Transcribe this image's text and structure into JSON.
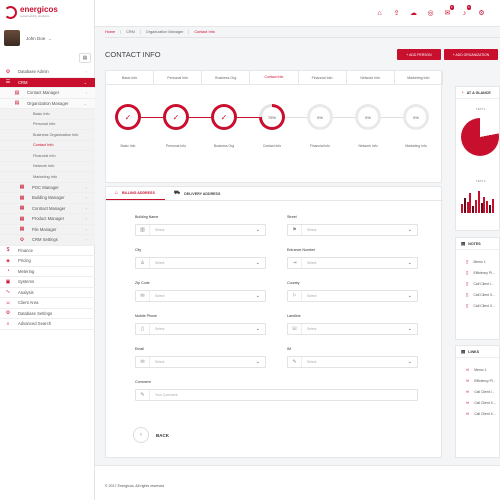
{
  "brand": {
    "name": "energicos",
    "tagline": "sustainability analytics"
  },
  "user": {
    "name": "John Doe"
  },
  "sidebar": {
    "items": [
      {
        "icon": "⚙",
        "label": "Database Admin",
        "type": "top",
        "chev": "‹"
      },
      {
        "icon": "☰",
        "label": "CRM",
        "type": "active",
        "chev": "⌄"
      },
      {
        "icon": "▤",
        "label": "Contact Manager",
        "type": "sub",
        "chev": "‹"
      },
      {
        "icon": "▤",
        "label": "Organization Manager",
        "type": "sub",
        "chev": "⌄"
      },
      {
        "label": "Basic Info",
        "type": "leaf"
      },
      {
        "label": "Personal Info",
        "type": "leaf"
      },
      {
        "label": "Business Organization Info",
        "type": "leaf"
      },
      {
        "label": "Contact Info",
        "type": "leaf cur"
      },
      {
        "label": "Financial Info",
        "type": "leaf"
      },
      {
        "label": "Network Info",
        "type": "leaf"
      },
      {
        "label": "Marketing Info",
        "type": "leaf"
      },
      {
        "icon": "▦",
        "label": "POC Manager",
        "type": "sub2",
        "chev": "‹"
      },
      {
        "icon": "▦",
        "label": "Building Manager",
        "type": "sub2",
        "chev": "‹"
      },
      {
        "icon": "▦",
        "label": "Contract Manager",
        "type": "sub2",
        "chev": "‹"
      },
      {
        "icon": "▦",
        "label": "Product Manager",
        "type": "sub2",
        "chev": "‹"
      },
      {
        "icon": "▦",
        "label": "File Manager",
        "type": "sub2",
        "chev": "‹"
      },
      {
        "icon": "⚙",
        "label": "CRM Settings",
        "type": "sub2",
        "chev": "‹"
      },
      {
        "icon": "$",
        "label": "Finance",
        "type": "top",
        "chev": ""
      },
      {
        "icon": "◈",
        "label": "Pricing",
        "type": "top",
        "chev": ""
      },
      {
        "icon": "◔",
        "label": "Metering",
        "type": "top",
        "chev": ""
      },
      {
        "icon": "▣",
        "label": "Systems",
        "type": "top",
        "chev": ""
      },
      {
        "icon": "∿",
        "label": "Analysis",
        "type": "top",
        "chev": ""
      },
      {
        "icon": "☺",
        "label": "Client Area",
        "type": "top",
        "chev": ""
      },
      {
        "icon": "⚙",
        "label": "Database Settings",
        "type": "top",
        "chev": ""
      },
      {
        "icon": "⌕",
        "label": "Advanced Search",
        "type": "top",
        "chev": ""
      }
    ]
  },
  "topbar": {
    "icons": [
      {
        "name": "home-icon",
        "glyph": "⌂",
        "badge": ""
      },
      {
        "name": "upload-icon",
        "glyph": "⇪",
        "badge": ""
      },
      {
        "name": "cloud-icon",
        "glyph": "☁",
        "badge": ""
      },
      {
        "name": "support-icon",
        "glyph": "◎",
        "badge": ""
      },
      {
        "name": "mail-icon",
        "glyph": "✉",
        "badge": "2"
      },
      {
        "name": "bell-icon",
        "glyph": "♪",
        "badge": "4"
      },
      {
        "name": "gear-icon",
        "glyph": "⚙",
        "badge": ""
      }
    ]
  },
  "breadcrumbs": [
    "Home",
    "CRM",
    "Organization Manager",
    "Contact Info"
  ],
  "page": {
    "title": "CONTACT INFO",
    "add_person": "+ ADD PERSON",
    "add_org": "+ ADD ORGANIZATION"
  },
  "tabs": [
    "Basic Info",
    "Personal Info",
    "Business Org",
    "Contact Info",
    "Financial Info",
    "Network Info",
    "Marketing Info"
  ],
  "steps": [
    {
      "label": "Basic Info",
      "state": "done",
      "text": "✓"
    },
    {
      "label": "Personal Info",
      "state": "done",
      "text": "✓"
    },
    {
      "label": "Business Org",
      "state": "done",
      "text": "✓"
    },
    {
      "label": "Contact Info",
      "state": "cur",
      "text": "75%",
      "progress": 0.75
    },
    {
      "label": "Financial Info",
      "state": "todo",
      "text": "0%"
    },
    {
      "label": "Network Info",
      "state": "todo",
      "text": "0%"
    },
    {
      "label": "Marketing Info",
      "state": "todo",
      "text": "0%"
    }
  ],
  "form": {
    "tabs": [
      {
        "icon": "⌂",
        "label": "BILLING ADDRESS"
      },
      {
        "icon": "⛟",
        "label": "DELIVERY ADDRESS"
      }
    ],
    "fields": [
      {
        "label": "Building Name",
        "icon": "▥",
        "placeholder": "Select",
        "dropdown": true
      },
      {
        "label": "Street",
        "icon": "⚑",
        "placeholder": "Select",
        "dropdown": true
      },
      {
        "label": "City",
        "icon": "♙",
        "placeholder": "Select",
        "dropdown": true
      },
      {
        "label": "Entrance Number",
        "icon": "⇥",
        "placeholder": "Select",
        "dropdown": true
      },
      {
        "label": "Zip Code",
        "icon": "✉",
        "placeholder": "Select",
        "dropdown": true
      },
      {
        "label": "Country",
        "icon": "⚐",
        "placeholder": "Select",
        "dropdown": true
      },
      {
        "label": "Mobile Phone",
        "icon": "▯",
        "placeholder": "Select",
        "dropdown": true
      },
      {
        "label": "Landline",
        "icon": "☏",
        "placeholder": "Select",
        "dropdown": true
      },
      {
        "label": "Email",
        "icon": "✉",
        "placeholder": "Select",
        "dropdown": true
      },
      {
        "label": "IM",
        "icon": "✎",
        "placeholder": "Select",
        "dropdown": true
      }
    ],
    "comment": {
      "label": "Comment",
      "placeholder": "Your Comment"
    },
    "back": "BACK"
  },
  "footer": {
    "text": "© 2017 Energicos. All rights reserved"
  },
  "glance": {
    "title": "AT A GLANCE",
    "chart1_label": "TEXT 1",
    "chart2_label": "TEXT 2",
    "pie_share": 0.78,
    "bars": [
      8,
      14,
      10,
      18,
      6,
      12,
      20,
      9,
      15,
      11,
      7,
      13
    ]
  },
  "notes": {
    "title": "NOTES",
    "items": [
      "Memo 1",
      "Efficiency Pl...",
      "Call Client I...",
      "Call Client X...",
      "Call Client X..."
    ]
  },
  "links": {
    "title": "LINKS",
    "items": [
      "Memo 1",
      "Efficiency Pl...",
      "Call Client I...",
      "Call Client X...",
      "Call Client X..."
    ]
  }
}
